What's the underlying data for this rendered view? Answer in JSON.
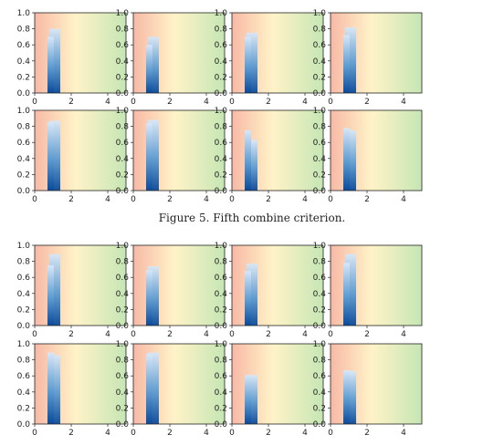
{
  "caption": "Figure 5. Fifth combine criterion.",
  "axes": {
    "xlim": [
      0,
      5
    ],
    "ylim": [
      0,
      1.0
    ],
    "x_ticks": [
      0,
      2,
      4
    ],
    "y_ticks": [
      0.0,
      0.2,
      0.4,
      0.6,
      0.8,
      1.0
    ],
    "background": [
      "#f8b9a6",
      "#fff3c8",
      "#c6e6b4"
    ]
  },
  "chart_data": [
    {
      "type": "area",
      "panel": 1,
      "bars": [
        {
          "x0": 0.7,
          "x1": 1.05,
          "top": 0.7
        },
        {
          "x0": 0.8,
          "x1": 1.4,
          "top": 0.8
        }
      ]
    },
    {
      "type": "area",
      "panel": 2,
      "bars": [
        {
          "x0": 0.7,
          "x1": 1.05,
          "top": 0.6
        },
        {
          "x0": 0.8,
          "x1": 1.4,
          "top": 0.7
        }
      ]
    },
    {
      "type": "area",
      "panel": 3,
      "bars": [
        {
          "x0": 0.7,
          "x1": 1.05,
          "top": 0.7
        },
        {
          "x0": 0.8,
          "x1": 1.4,
          "top": 0.75
        }
      ]
    },
    {
      "type": "area",
      "panel": 4,
      "bars": [
        {
          "x0": 0.7,
          "x1": 1.05,
          "top": 0.72
        },
        {
          "x0": 0.8,
          "x1": 1.4,
          "top": 0.82
        }
      ]
    },
    {
      "type": "area",
      "panel": 5,
      "bars": [
        {
          "x0": 0.7,
          "x1": 1.05,
          "top": 0.85
        },
        {
          "x0": 0.8,
          "x1": 1.4,
          "top": 0.87
        }
      ]
    },
    {
      "type": "area",
      "panel": 6,
      "bars": [
        {
          "x0": 0.7,
          "x1": 1.05,
          "top": 0.84
        },
        {
          "x0": 0.8,
          "x1": 1.4,
          "top": 0.88
        }
      ]
    },
    {
      "type": "area",
      "panel": 7,
      "bars": [
        {
          "x0": 0.7,
          "x1": 1.05,
          "top": 0.75
        },
        {
          "x0": 0.8,
          "x1": 1.4,
          "top": 0.63
        }
      ]
    },
    {
      "type": "area",
      "panel": 8,
      "bars": [
        {
          "x0": 0.7,
          "x1": 1.05,
          "top": 0.78
        },
        {
          "x0": 0.8,
          "x1": 1.4,
          "top": 0.75
        }
      ]
    },
    {
      "type": "area",
      "panel": 9,
      "bars": [
        {
          "x0": 0.7,
          "x1": 1.05,
          "top": 0.75
        },
        {
          "x0": 0.8,
          "x1": 1.4,
          "top": 0.89
        }
      ]
    },
    {
      "type": "area",
      "panel": 10,
      "bars": [
        {
          "x0": 0.7,
          "x1": 1.05,
          "top": 0.69
        },
        {
          "x0": 0.8,
          "x1": 1.4,
          "top": 0.74
        }
      ]
    },
    {
      "type": "area",
      "panel": 11,
      "bars": [
        {
          "x0": 0.7,
          "x1": 1.05,
          "top": 0.68
        },
        {
          "x0": 0.8,
          "x1": 1.4,
          "top": 0.77
        }
      ]
    },
    {
      "type": "area",
      "panel": 12,
      "bars": [
        {
          "x0": 0.7,
          "x1": 1.05,
          "top": 0.78
        },
        {
          "x0": 0.8,
          "x1": 1.4,
          "top": 0.89
        }
      ]
    },
    {
      "type": "area",
      "panel": 13,
      "bars": [
        {
          "x0": 0.7,
          "x1": 1.05,
          "top": 0.89
        },
        {
          "x0": 0.8,
          "x1": 1.4,
          "top": 0.86
        }
      ]
    },
    {
      "type": "area",
      "panel": 14,
      "bars": [
        {
          "x0": 0.7,
          "x1": 1.05,
          "top": 0.87
        },
        {
          "x0": 0.8,
          "x1": 1.4,
          "top": 0.89
        }
      ]
    },
    {
      "type": "area",
      "panel": 15,
      "bars": [
        {
          "x0": 0.7,
          "x1": 1.05,
          "top": 0.61
        },
        {
          "x0": 0.8,
          "x1": 1.4,
          "top": 0.61
        }
      ]
    },
    {
      "type": "area",
      "panel": 16,
      "bars": [
        {
          "x0": 0.7,
          "x1": 1.05,
          "top": 0.67
        },
        {
          "x0": 0.8,
          "x1": 1.4,
          "top": 0.66
        }
      ]
    }
  ]
}
